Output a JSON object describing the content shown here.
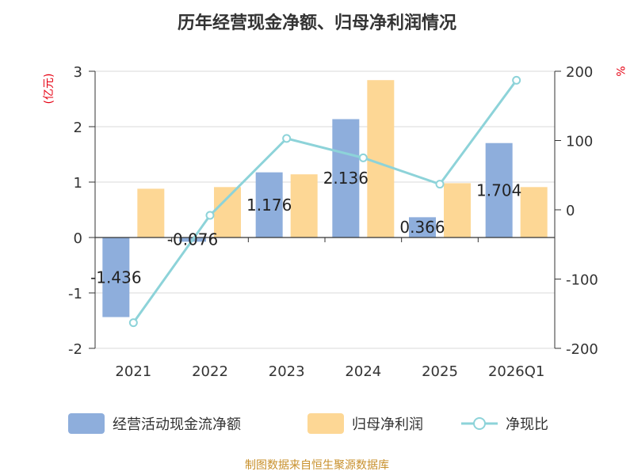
{
  "chart_data": {
    "type": "bar",
    "title": "历年经营现金净额、归母净利润情况",
    "categories": [
      "2021",
      "2022",
      "2023",
      "2024",
      "2025",
      "2026Q1"
    ],
    "series": [
      {
        "name": "经营活动现金流净额",
        "kind": "bar",
        "axis": "left",
        "color": "#8eaedc",
        "values": [
          -1.436,
          -0.076,
          1.176,
          2.136,
          0.366,
          1.704
        ],
        "labels": [
          "-1.436",
          "-0.076",
          "1.176",
          "2.136",
          "0.366",
          "1.704"
        ]
      },
      {
        "name": "归母净利润",
        "kind": "bar",
        "axis": "left",
        "color": "#fdd795",
        "values": [
          0.88,
          0.91,
          1.14,
          2.84,
          0.98,
          0.91
        ]
      },
      {
        "name": "净现比",
        "kind": "line",
        "axis": "right",
        "color": "#8dd3d9",
        "values": [
          -163,
          -8,
          103,
          75,
          37,
          187
        ]
      }
    ],
    "ylabel_left": "(亿元)",
    "ylabel_right": "%",
    "ylim_left": [
      -2,
      3
    ],
    "yticks_left": [
      -2,
      -1,
      0,
      1,
      2,
      3
    ],
    "ylim_right": [
      -200,
      200
    ],
    "yticks_right": [
      -200,
      -100,
      0,
      100,
      200
    ],
    "grid": true,
    "legend_position": "bottom"
  },
  "source": "制图数据来自恒生聚源数据库"
}
